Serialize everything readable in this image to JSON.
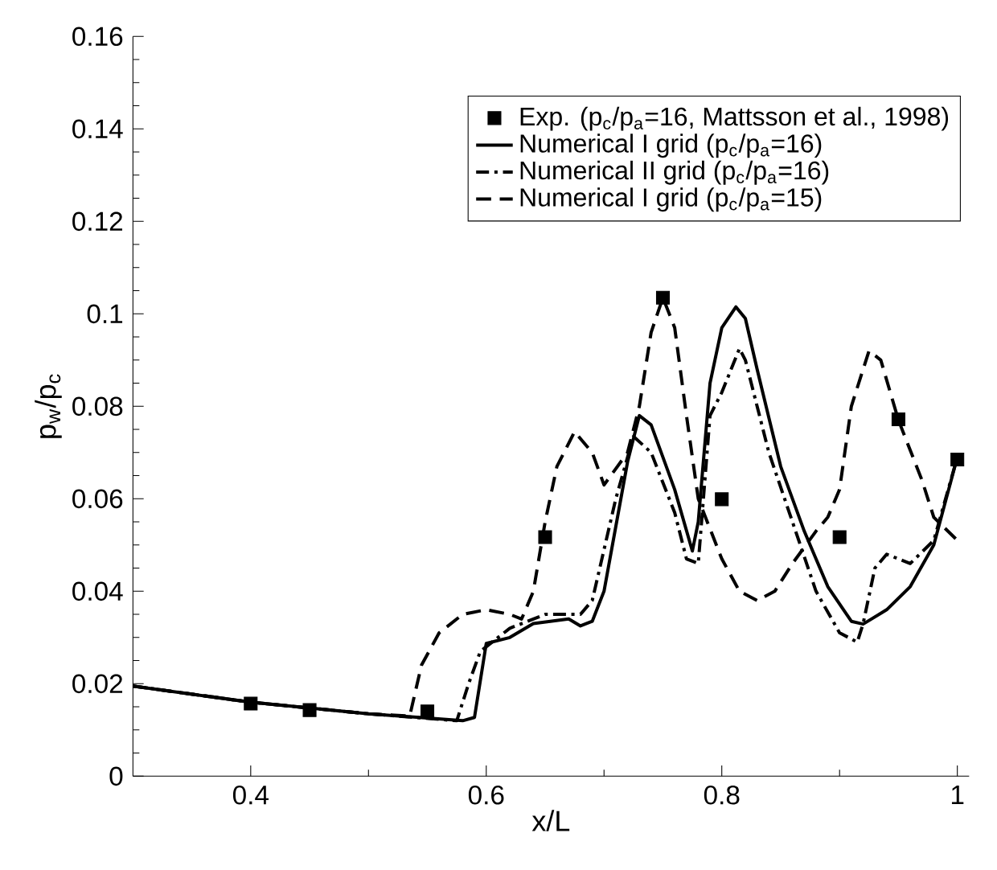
{
  "chart_data": {
    "type": "line",
    "xlabel": "x/L",
    "ylabel": "p$_{w}$/p$_{c}$",
    "xlim": [
      0.3,
      1.01
    ],
    "ylim": [
      0,
      0.16
    ],
    "xticks": [
      0.4,
      0.6,
      0.8,
      1
    ],
    "yticks": [
      0,
      0.02,
      0.04,
      0.06,
      0.08,
      0.1,
      0.12,
      0.14,
      0.16
    ],
    "legend": "top right",
    "grid": false,
    "series": [
      {
        "name": "Exp. (p$_{c}$/p$_{a}$=16, Mattsson et al., 1998)",
        "type": "scatter",
        "marker": "square",
        "color": "#000000",
        "x": [
          0.4,
          0.45,
          0.55,
          0.65,
          0.75,
          0.8,
          0.9,
          0.95,
          1.0
        ],
        "values": [
          0.0157,
          0.0143,
          0.014,
          0.0517,
          0.1035,
          0.0599,
          0.0517,
          0.0772,
          0.0685
        ]
      },
      {
        "name": "Numerical I grid (p$_{c}$/p$_{a}$=16)",
        "line_style": "solid",
        "color": "#000000",
        "x": [
          0.3,
          0.4,
          0.5,
          0.58,
          0.59,
          0.6,
          0.62,
          0.64,
          0.67,
          0.68,
          0.69,
          0.7,
          0.72,
          0.73,
          0.74,
          0.76,
          0.775,
          0.78,
          0.79,
          0.8,
          0.812,
          0.82,
          0.83,
          0.85,
          0.87,
          0.89,
          0.91,
          0.92,
          0.94,
          0.96,
          0.98,
          1.0
        ],
        "values": [
          0.0195,
          0.016,
          0.0135,
          0.012,
          0.0127,
          0.0287,
          0.03,
          0.033,
          0.034,
          0.0325,
          0.0335,
          0.04,
          0.068,
          0.078,
          0.076,
          0.062,
          0.0487,
          0.055,
          0.085,
          0.097,
          0.1015,
          0.099,
          0.088,
          0.067,
          0.053,
          0.041,
          0.0335,
          0.0329,
          0.036,
          0.041,
          0.05,
          0.069
        ]
      },
      {
        "name": "Numerical II grid (p$_{c}$/p$_{a}$=16)",
        "line_style": "dashdot",
        "color": "#000000",
        "x": [
          0.3,
          0.4,
          0.5,
          0.575,
          0.585,
          0.595,
          0.62,
          0.65,
          0.68,
          0.69,
          0.71,
          0.725,
          0.74,
          0.76,
          0.77,
          0.78,
          0.79,
          0.8,
          0.815,
          0.82,
          0.84,
          0.86,
          0.88,
          0.9,
          0.915,
          0.92,
          0.93,
          0.94,
          0.96,
          0.98,
          1.0
        ],
        "values": [
          0.0195,
          0.016,
          0.0135,
          0.012,
          0.02,
          0.027,
          0.032,
          0.035,
          0.035,
          0.038,
          0.06,
          0.0735,
          0.07,
          0.057,
          0.047,
          0.046,
          0.078,
          0.083,
          0.0925,
          0.09,
          0.07,
          0.055,
          0.04,
          0.031,
          0.029,
          0.033,
          0.045,
          0.048,
          0.046,
          0.051,
          0.069
        ]
      },
      {
        "name": "Numerical I grid (p$_{c}$/p$_{a}$=15)",
        "line_style": "dashed",
        "color": "#000000",
        "x": [
          0.3,
          0.4,
          0.5,
          0.535,
          0.545,
          0.56,
          0.58,
          0.6,
          0.62,
          0.63,
          0.64,
          0.65,
          0.66,
          0.675,
          0.69,
          0.7,
          0.72,
          0.73,
          0.74,
          0.75,
          0.76,
          0.77,
          0.78,
          0.8,
          0.815,
          0.83,
          0.845,
          0.86,
          0.88,
          0.89,
          0.9,
          0.91,
          0.925,
          0.935,
          0.95,
          0.97,
          0.98,
          1.0
        ],
        "values": [
          0.0195,
          0.016,
          0.0135,
          0.013,
          0.024,
          0.031,
          0.035,
          0.036,
          0.035,
          0.034,
          0.04,
          0.055,
          0.067,
          0.0745,
          0.07,
          0.063,
          0.07,
          0.08,
          0.096,
          0.1035,
          0.097,
          0.078,
          0.06,
          0.047,
          0.04,
          0.038,
          0.04,
          0.046,
          0.053,
          0.056,
          0.062,
          0.08,
          0.092,
          0.09,
          0.077,
          0.064,
          0.056,
          0.051
        ]
      }
    ]
  }
}
